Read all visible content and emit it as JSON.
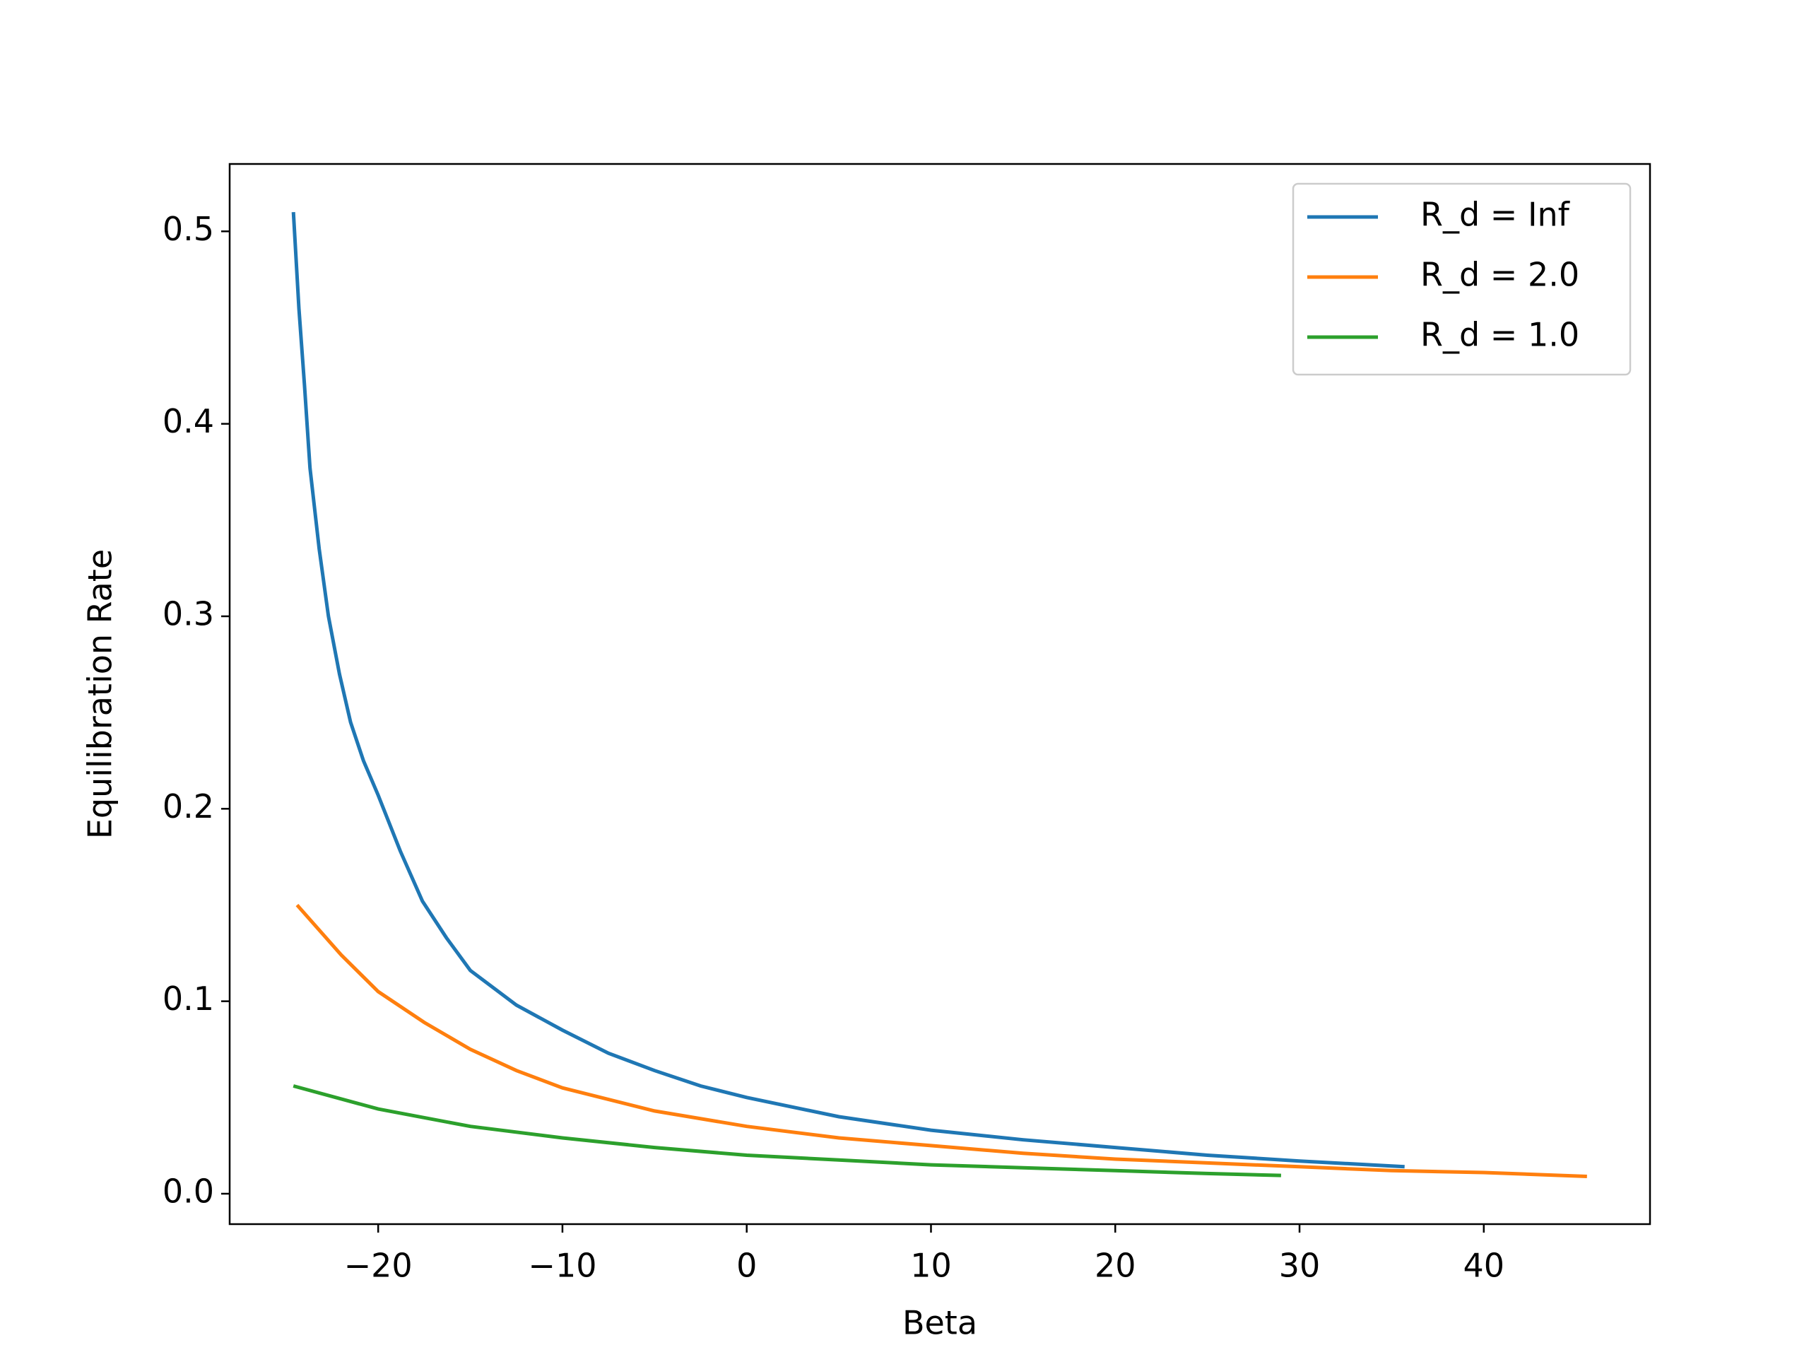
{
  "chart_data": {
    "type": "line",
    "x_label": "Beta",
    "y_label": "Equilibration Rate",
    "xlim": [
      -28.06,
      49.02
    ],
    "ylim": [
      -0.0158,
      0.535
    ],
    "xticks": [
      {
        "value": -20,
        "label": "−20"
      },
      {
        "value": -10,
        "label": "−10"
      },
      0,
      10,
      20,
      30,
      40
    ],
    "yticks": [
      {
        "value": 0,
        "label": "0.0"
      },
      0.1,
      0.2,
      0.3,
      0.4,
      0.5
    ],
    "legend": "upper right",
    "series": [
      {
        "name": "R_d = Inf",
        "color": "#1f77b4",
        "x": [
          -24.6,
          -24.3,
          -24.0,
          -23.7,
          -23.2,
          -22.7,
          -22.1,
          -21.5,
          -20.8,
          -20,
          -18.8,
          -17.6,
          -16.3,
          -15,
          -12.5,
          -10,
          -7.5,
          -5,
          -2.5,
          0,
          5,
          10,
          15,
          20,
          25,
          30,
          35.7
        ],
        "values": [
          0.51,
          0.46,
          0.42,
          0.377,
          0.335,
          0.3,
          0.27,
          0.245,
          0.225,
          0.207,
          0.178,
          0.152,
          0.133,
          0.116,
          0.098,
          0.085,
          0.073,
          0.064,
          0.056,
          0.05,
          0.04,
          0.033,
          0.028,
          0.024,
          0.02,
          0.017,
          0.014
        ]
      },
      {
        "name": "R_d = 2.0",
        "color": "#ff7f0e",
        "x": [
          -24.4,
          -22,
          -20,
          -17.5,
          -15,
          -12.5,
          -10,
          -5,
          0,
          5,
          10,
          15,
          20,
          25,
          30,
          35,
          40,
          45.6
        ],
        "values": [
          0.15,
          0.124,
          0.105,
          0.089,
          0.075,
          0.064,
          0.055,
          0.043,
          0.035,
          0.029,
          0.025,
          0.021,
          0.018,
          0.016,
          0.014,
          0.012,
          0.011,
          0.009
        ]
      },
      {
        "name": "R_d = 1.0",
        "color": "#2ca02c",
        "x": [
          -24.6,
          -20,
          -15,
          -10,
          -5,
          0,
          5,
          10,
          15,
          20,
          25,
          29
        ],
        "values": [
          0.056,
          0.044,
          0.035,
          0.029,
          0.024,
          0.02,
          0.0175,
          0.015,
          0.0135,
          0.012,
          0.0105,
          0.0095
        ]
      }
    ]
  }
}
